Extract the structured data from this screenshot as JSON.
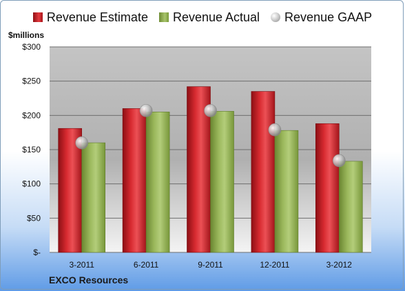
{
  "legend": {
    "estimate": "Revenue Estimate",
    "actual": "Revenue Actual",
    "gaap": "Revenue GAAP"
  },
  "units_label": "$millions",
  "company": "EXCO Resources",
  "chart_data": {
    "type": "bar",
    "categories": [
      "3-2011",
      "6-2011",
      "9-2011",
      "12-2011",
      "3-2012"
    ],
    "series": [
      {
        "name": "Revenue Estimate",
        "type": "bar",
        "color": "#c8181f",
        "values": [
          181,
          210,
          242,
          235,
          188
        ]
      },
      {
        "name": "Revenue Actual",
        "type": "bar",
        "color": "#8fae4f",
        "values": [
          160,
          205,
          206,
          178,
          133
        ]
      },
      {
        "name": "Revenue GAAP",
        "type": "marker",
        "color": "#b0b0b0",
        "values": [
          160,
          207,
          207,
          179,
          134
        ]
      }
    ],
    "ylabel": "$millions",
    "ylim": [
      0,
      300
    ],
    "yticks": [
      0,
      50,
      100,
      150,
      200,
      250,
      300
    ],
    "ytick_labels": [
      "$-",
      "$50",
      "$100",
      "$150",
      "$200",
      "$250",
      "$300"
    ],
    "grid": true,
    "legend_position": "top"
  }
}
